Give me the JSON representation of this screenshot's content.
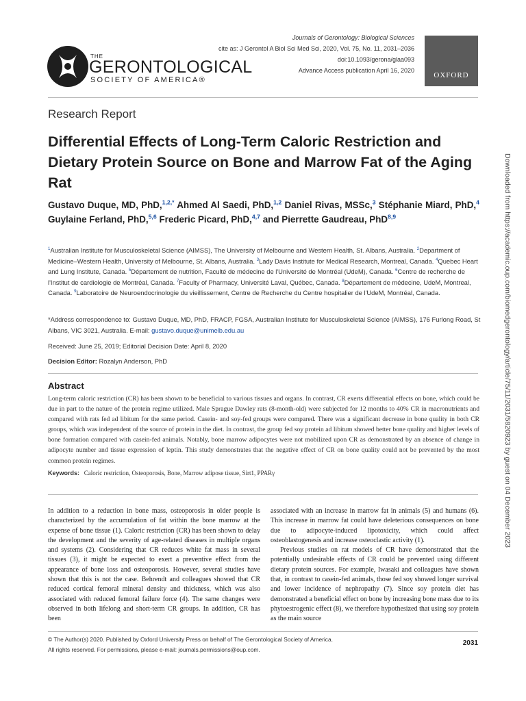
{
  "header": {
    "journal": "Journals of Gerontology: Biological Sciences",
    "cite": "cite as: J Gerontol A Biol Sci Med Sci, 2020, Vol. 75, No. 11, 2031–2036",
    "doi": "doi:10.1093/gerona/glaa093",
    "advance": "Advance Access publication April 16, 2020",
    "logo_the": "THE",
    "logo_main": "GERONTOLOGICAL",
    "logo_sub": "SOCIETY OF AMERICA®",
    "publisher": "OXFORD"
  },
  "section": "Research Report",
  "title": "Differential Effects of Long-Term Caloric Restriction and Dietary Protein Source on Bone and Marrow Fat of the Aging Rat",
  "authors": [
    {
      "name": "Gustavo Duque, MD, PhD,",
      "sup": "1,2,*"
    },
    {
      "name": "Ahmed Al Saedi, PhD,",
      "sup": "1,2"
    },
    {
      "name": "Daniel Rivas, MSSc,",
      "sup": "3"
    },
    {
      "name": "Stéphanie Miard, PhD,",
      "sup": "4"
    },
    {
      "name": "Guylaine Ferland, PhD,",
      "sup": "5,6"
    },
    {
      "name": "Frederic Picard, PhD,",
      "sup": "4,7"
    },
    {
      "name": "and Pierrette Gaudreau, PhD",
      "sup": "8,9"
    }
  ],
  "affiliations": [
    {
      "sup": "1",
      "text": "Australian Institute for Musculoskeletal Science (AIMSS), The University of Melbourne and Western Health, St. Albans, Australia."
    },
    {
      "sup": "2",
      "text": "Department of Medicine–Western Health, University of Melbourne, St. Albans, Australia."
    },
    {
      "sup": "3",
      "text": "Lady Davis Institute for Medical Research, Montreal, Canada."
    },
    {
      "sup": "4",
      "text": "Quebec Heart and Lung Institute, Canada."
    },
    {
      "sup": "5",
      "text": "Département de nutrition, Faculté de médecine de l'Université de Montréal (UdeM), Canada."
    },
    {
      "sup": "6",
      "text": "Centre de recherche de l'Institut de cardiologie de Montréal, Canada."
    },
    {
      "sup": "7",
      "text": "Faculty of Pharmacy, Université Laval, Québec, Canada."
    },
    {
      "sup": "8",
      "text": "Département de médecine, UdeM, Montreal, Canada."
    },
    {
      "sup": "9",
      "text": "Laboratoire de Neuroendocrinologie du vieillissement, Centre de Recherche du Centre hospitalier de l'UdeM, Montréal, Canada."
    }
  ],
  "correspondence": {
    "text": "*Address correspondence to: Gustavo Duque, MD, PhD, FRACP, FGSA, Australian Institute for Musculoskeletal Science (AIMSS), 176 Furlong Road, St Albans, VIC 3021, Australia. E-mail:",
    "email": "gustavo.duque@unimelb.edu.au"
  },
  "received": "Received: June 25, 2019; Editorial Decision Date: April 8, 2020",
  "decision_editor": {
    "label": "Decision Editor:",
    "name": "Rozalyn Anderson, PhD"
  },
  "abstract": {
    "heading": "Abstract",
    "text": "Long-term caloric restriction (CR) has been shown to be beneficial to various tissues and organs. In contrast, CR exerts differential effects on bone, which could be due in part to the nature of the protein regime utilized. Male Sprague Dawley rats (8-month-old) were subjected for 12 months to 40% CR in macronutrients and compared with rats fed ad libitum for the same period. Casein- and soy-fed groups were compared. There was a significant decrease in bone quality in both CR groups, which was independent of the source of protein in the diet. In contrast, the group fed soy protein ad libitum showed better bone quality and higher levels of bone formation compared with casein-fed animals. Notably, bone marrow adipocytes were not mobilized upon CR as demonstrated by an absence of change in adipocyte number and tissue expression of leptin. This study demonstrates that the negative effect of CR on bone quality could not be prevented by the most common protein regimes.",
    "keywords_label": "Keywords:",
    "keywords": "Caloric restriction, Osteoporosis, Bone, Marrow adipose tissue, Sirt1, PPARγ"
  },
  "body": {
    "col1": [
      "In addition to a reduction in bone mass, osteoporosis in older people is characterized by the accumulation of fat within the bone marrow at the expense of bone tissue (1). Caloric restriction (CR) has been shown to delay the development and the severity of age-related diseases in multiple organs and systems (2). Considering that CR reduces white fat mass in several tissues (3), it might be expected to exert a preventive effect from the appearance of bone loss and osteoporosis. However, several studies have shown that this is not the case. Behrendt and colleagues showed that CR reduced cortical femoral mineral density and thickness, which was also associated with reduced femoral failure force (4). The same changes were observed in both lifelong and short-term CR groups. In addition, CR has been"
    ],
    "col2": [
      "associated with an increase in marrow fat in animals (5) and humans (6). This increase in marrow fat could have deleterious consequences on bone due to adipocyte-induced lipotoxicity, which could affect osteoblastogenesis and increase osteoclastic activity (1).",
      "Previous studies on rat models of CR have demonstrated that the potentially undesirable effects of CR could be prevented using different dietary protein sources. For example, Iwasaki and colleagues have shown that, in contrast to casein-fed animals, those fed soy showed longer survival and lower incidence of nephropathy (7). Since soy protein diet has demonstrated a beneficial effect on bone by increasing bone mass due to its phytoestrogenic effect (8), we therefore hypothesized that using soy protein as the main source"
    ]
  },
  "footer": {
    "copyright": "© The Author(s) 2020. Published by Oxford University Press on behalf of The Gerontological Society of America.",
    "rights": "All rights reserved. For permissions, please e-mail: journals.permissions@oup.com.",
    "page": "2031"
  },
  "sidebar": "Downloaded from https://academic.oup.com/biomedgerontology/article/75/11/2031/5820923 by guest on 04 December 2023"
}
